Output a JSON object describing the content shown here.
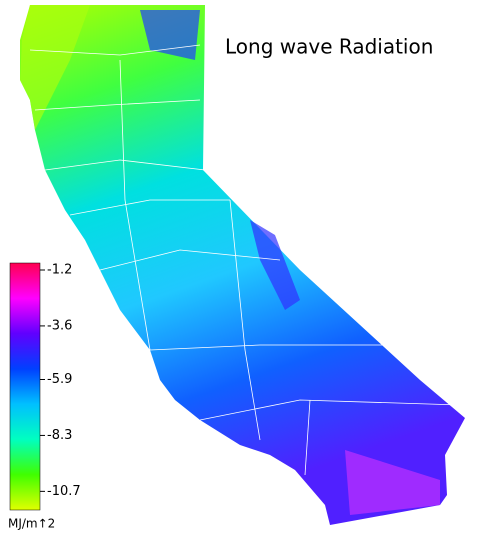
{
  "map": {
    "title": "Long wave Radiation",
    "colorbar": {
      "range": [
        -11.5,
        -0.9
      ],
      "ticks": [
        -1.2,
        -3.6,
        -5.9,
        -8.3,
        -10.7
      ],
      "unit_label": "MJ/m↑2",
      "colors": [
        "#e0ff00",
        "#40ff00",
        "#00ffc0",
        "#00c0ff",
        "#0040ff",
        "#6000ff",
        "#ff00ff",
        "#ff0050"
      ]
    }
  }
}
